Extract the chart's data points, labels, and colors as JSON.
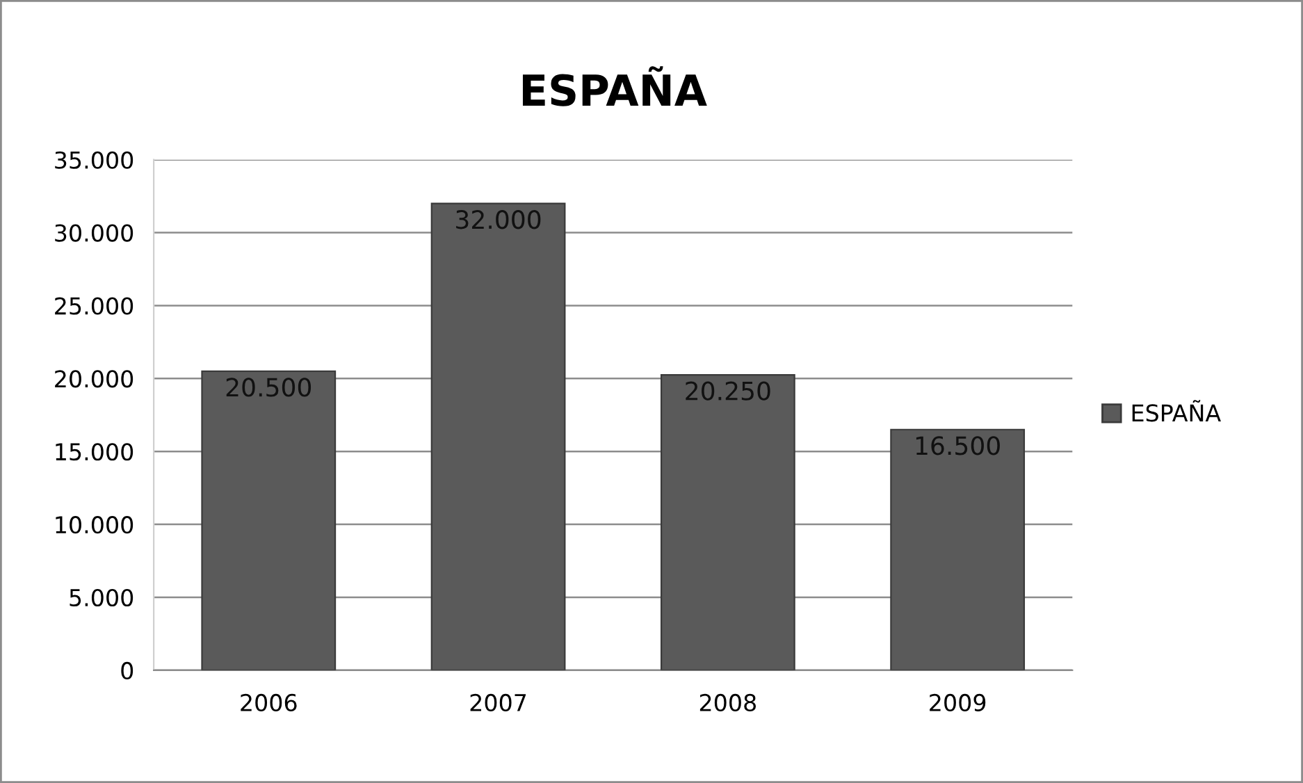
{
  "chart_data": {
    "type": "bar",
    "title": "ESPAÑA",
    "categories": [
      "2006",
      "2007",
      "2008",
      "2009"
    ],
    "series": [
      {
        "name": "ESPAÑA",
        "color": "#5a5a5a",
        "values": [
          20500,
          32000,
          20250,
          16500
        ],
        "value_labels": [
          "20.500",
          "32.000",
          "20.250",
          "16.500"
        ]
      }
    ],
    "ylim": [
      0,
      35000
    ],
    "yticks": [
      {
        "value": 0,
        "label": "0"
      },
      {
        "value": 5000,
        "label": "5.000"
      },
      {
        "value": 10000,
        "label": "10.000"
      },
      {
        "value": 15000,
        "label": "15.000"
      },
      {
        "value": 20000,
        "label": "20.000"
      },
      {
        "value": 25000,
        "label": "25.000"
      },
      {
        "value": 30000,
        "label": "30.000"
      },
      {
        "value": 35000,
        "label": "35.000"
      }
    ],
    "grid": "y",
    "legend": "right"
  }
}
